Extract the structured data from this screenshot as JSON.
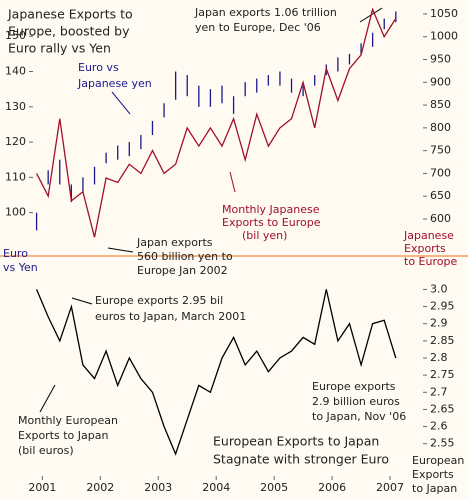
{
  "chart_data": [
    {
      "type": "range_bar_line",
      "x": [
        2000.9,
        2001.1,
        2001.3,
        2001.5,
        2001.7,
        2001.9,
        2002.1,
        2002.3,
        2002.5,
        2002.7,
        2002.9,
        2003.1,
        2003.3,
        2003.5,
        2003.7,
        2003.9,
        2004.1,
        2004.3,
        2004.5,
        2004.7,
        2004.9,
        2005.1,
        2005.3,
        2005.5,
        2005.7,
        2005.9,
        2006.1,
        2006.3,
        2006.5,
        2006.7,
        2006.9,
        2007.1
      ],
      "xlim": [
        2000.7,
        2007.5
      ],
      "ylim": [
        88,
        158
      ],
      "yticks": [
        100,
        110,
        120,
        130,
        140,
        150
      ],
      "y2lim": [
        521,
        1063
      ],
      "y2ticks": [
        600,
        650,
        700,
        750,
        800,
        850,
        900,
        950,
        1000,
        1050
      ],
      "series": [
        {
          "color": "#1a1a8c",
          "low": [
            95,
            108,
            108,
            103,
            106,
            108,
            114,
            115,
            116,
            118,
            122,
            127,
            132,
            133,
            130,
            130,
            131,
            128,
            133,
            134,
            136,
            136,
            134,
            133,
            136,
            139,
            140,
            142,
            145,
            147,
            152,
            154
          ],
          "high": [
            100,
            112,
            115,
            108,
            110,
            113,
            117,
            119,
            120,
            122,
            126,
            131,
            140,
            139,
            136,
            135,
            136,
            133,
            137,
            138,
            139,
            140,
            138,
            136,
            139,
            142,
            144,
            145,
            148,
            151,
            155,
            157
          ]
        },
        {
          "color": "#a0102a",
          "axis": "y2",
          "values": [
            700,
            650,
            820,
            640,
            660,
            560,
            690,
            680,
            720,
            700,
            750,
            700,
            720,
            800,
            760,
            800,
            760,
            820,
            730,
            830,
            760,
            800,
            820,
            900,
            800,
            930,
            860,
            930,
            960,
            1060,
            1000,
            1040
          ]
        }
      ]
    },
    {
      "type": "line",
      "x": [
        2000.9,
        2001.1,
        2001.3,
        2001.5,
        2001.7,
        2001.9,
        2002.1,
        2002.3,
        2002.5,
        2002.7,
        2002.9,
        2003.1,
        2003.3,
        2003.5,
        2003.7,
        2003.9,
        2004.1,
        2004.3,
        2004.5,
        2004.7,
        2004.9,
        2005.1,
        2005.3,
        2005.5,
        2005.7,
        2005.9,
        2006.1,
        2006.3,
        2006.5,
        2006.7,
        2006.9,
        2007.1
      ],
      "xlim": [
        2000.7,
        2007.5
      ],
      "xticks": [
        2001,
        2002,
        2003,
        2004,
        2005,
        2006,
        2007
      ],
      "ylim": [
        2.45,
        3.08
      ],
      "yticks": [
        {
          "value": 3,
          "label": "3.0"
        },
        2.95,
        2.9,
        2.85,
        2.8,
        2.75,
        2.7,
        2.65,
        2.6,
        2.55
      ],
      "series": [
        {
          "color": "#000000",
          "values": [
            3.0,
            2.92,
            2.85,
            2.95,
            2.78,
            2.74,
            2.82,
            2.72,
            2.8,
            2.74,
            2.7,
            2.6,
            2.52,
            2.62,
            2.72,
            2.7,
            2.8,
            2.86,
            2.78,
            2.82,
            2.76,
            2.8,
            2.82,
            2.86,
            2.84,
            3.0,
            2.85,
            2.9,
            2.78,
            2.9,
            2.91,
            2.8
          ]
        }
      ]
    }
  ],
  "annotations": {
    "title": [
      "Japanese Exports to",
      "Europe, boosted by",
      "Euro rally vs Yen"
    ],
    "peak": [
      "Japan exports 1.06 trillion",
      "yen to Europe, Dec '06"
    ],
    "euro_label": [
      "Euro vs",
      "Japanese yen"
    ],
    "jp_label": [
      "Monthly Japanese",
      "Exports to Europe",
      "(bil yen)"
    ],
    "jp_axis": [
      "Japanese",
      "Exports",
      "to Europe"
    ],
    "euro_axis": [
      "Euro",
      "vs Yen"
    ],
    "jp_low": [
      "Japan exports",
      "560 billion yen to",
      "Europe Jan 2002"
    ],
    "eu_high": [
      "Europe exports 2.95 bil",
      "euros to Japan, March 2001"
    ],
    "eu_label": [
      "Monthly European",
      "Exports to Japan",
      "(bil euros)"
    ],
    "eu_nov": [
      "Europe exports",
      "2.9 billion euros",
      "to Japan, Nov '06"
    ],
    "bottom_title": [
      "European Exports to Japan",
      "Stagnate with stronger Euro"
    ],
    "eu_axis": [
      "European",
      "Exports",
      "to Japan"
    ]
  }
}
